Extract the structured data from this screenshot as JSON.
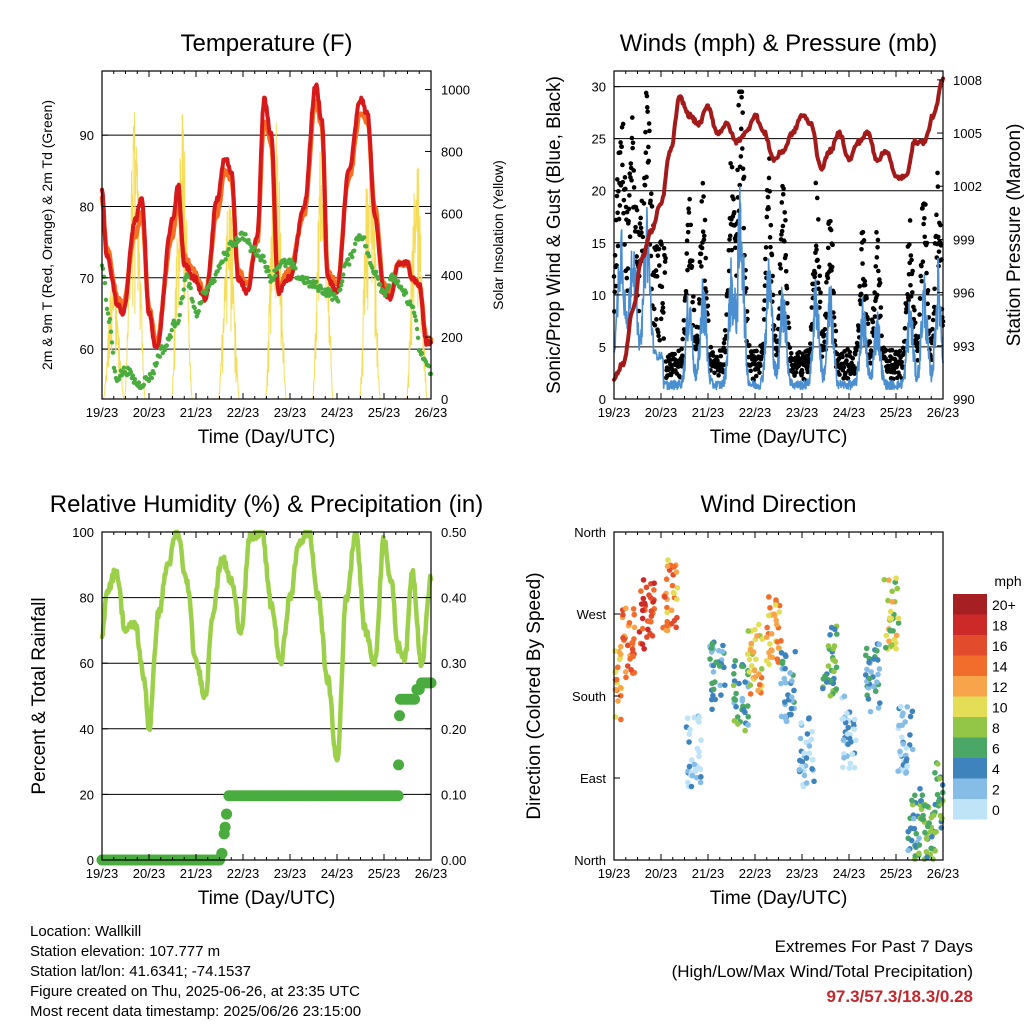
{
  "x_ticks": [
    "19/23",
    "20/23",
    "21/23",
    "22/23",
    "23/23",
    "24/23",
    "25/23",
    "26/23"
  ],
  "colors": {
    "temp_2m": "#d7191c",
    "temp_9m": "#f36f21",
    "dewpoint": "#4aac3f",
    "solar": "#f5dd5a",
    "wind": "#4b8fd0",
    "gust": "#000000",
    "pressure": "#a31a1a",
    "rh": "#9cd04a",
    "precip": "#4aac3f",
    "extremes": "#c0282d"
  },
  "info": {
    "location": "Location: Wallkill",
    "elevation": "Station elevation: 107.777 m",
    "latlon": "Station lat/lon: 41.6341; -74.1537",
    "created": "Figure created on Thu, 2025-06-26, at 23:35 UTC",
    "recent": "Most recent data timestamp: 2025/06/26 23:15:00"
  },
  "extremes": {
    "title": "Extremes For Past 7 Days",
    "subtitle": "(High/Low/Max Wind/Total Precipitation)",
    "values": "97.3/57.3/18.3/0.28"
  },
  "chart_data": [
    {
      "type": "line",
      "title": "Temperature (F)",
      "xlabel": "Time (Day/UTC)",
      "ylabel": "2m & 9m T (Red, Orange) & 2m Td (Green)",
      "y2label": "Solar Insolation (Yellow)",
      "ylim": [
        53,
        99
      ],
      "y2lim": [
        0,
        1060
      ],
      "yticks": [
        60,
        70,
        80,
        90
      ],
      "y2ticks": [
        0,
        200,
        400,
        600,
        800,
        1000
      ],
      "grid": true,
      "x_days": [
        0,
        1,
        2,
        3,
        4,
        5,
        6,
        7
      ],
      "series": [
        {
          "key": "temp_2m",
          "x": [
            0,
            0.1,
            0.35,
            0.45,
            0.7,
            0.85,
            1.0,
            1.15,
            1.5,
            1.62,
            1.75,
            1.95,
            2.2,
            2.45,
            2.62,
            2.75,
            2.9,
            3.1,
            3.3,
            3.45,
            3.6,
            3.75,
            4.0,
            4.3,
            4.55,
            4.68,
            4.8,
            5.0,
            5.25,
            5.5,
            5.65,
            5.8,
            6.0,
            6.15,
            6.3,
            6.5,
            6.6,
            6.75,
            6.9,
            7.0
          ],
          "y": [
            82,
            73,
            66,
            65,
            78,
            81,
            65,
            60,
            78,
            83,
            72,
            70,
            67,
            81,
            87,
            85,
            70,
            68,
            76,
            95,
            90,
            68,
            70,
            80,
            97,
            92,
            70,
            68,
            85,
            95,
            93,
            79,
            68,
            67,
            72,
            72,
            70,
            69,
            61,
            61
          ]
        },
        {
          "key": "temp_9m",
          "x": [
            0,
            0.1,
            0.35,
            0.45,
            0.7,
            0.85,
            1.0,
            1.15,
            1.5,
            1.62,
            1.75,
            1.95,
            2.2,
            2.45,
            2.62,
            2.75,
            2.9,
            3.1,
            3.3,
            3.45,
            3.6,
            3.75,
            4.0,
            4.3,
            4.55,
            4.68,
            4.8,
            5.0,
            5.25,
            5.5,
            5.65,
            5.8,
            6.0,
            6.15,
            6.3,
            6.5,
            6.6,
            6.75,
            6.9,
            7.0
          ],
          "y": [
            81,
            74,
            67,
            66,
            76,
            79,
            66,
            61,
            76,
            81,
            73,
            71,
            68,
            79,
            85,
            84,
            71,
            69,
            75,
            92,
            89,
            69,
            71,
            79,
            95,
            91,
            71,
            69,
            84,
            93,
            92,
            80,
            69,
            68,
            72,
            72,
            70,
            69,
            62,
            61
          ]
        },
        {
          "key": "dewpoint",
          "x": [
            0,
            0.15,
            0.3,
            0.5,
            0.8,
            1.0,
            1.3,
            1.6,
            1.8,
            2.0,
            2.2,
            2.4,
            2.6,
            2.8,
            3.0,
            3.2,
            3.4,
            3.6,
            3.8,
            4.0,
            4.2,
            4.5,
            4.8,
            5.0,
            5.2,
            5.5,
            5.8,
            6.0,
            6.2,
            6.4,
            6.6,
            6.8,
            7.0
          ],
          "y": [
            72,
            64,
            56,
            57,
            55,
            56,
            60,
            64,
            70,
            65,
            68,
            70,
            73,
            75,
            76,
            74,
            73,
            70,
            72,
            72,
            70,
            69,
            68,
            67,
            72,
            76,
            71,
            68,
            70,
            68,
            66,
            59,
            57
          ]
        },
        {
          "key": "solar",
          "days": [
            0.25,
            0.7,
            1.7,
            2.7,
            3.7,
            4.7,
            5.7,
            6.7
          ],
          "peaks": [
            440,
            990,
            950,
            700,
            960,
            940,
            940,
            780
          ]
        }
      ]
    },
    {
      "type": "scatter",
      "title": "Winds (mph) & Pressure (mb)",
      "xlabel": "Time (Day/UTC)",
      "ylabel": "Sonic/Prop Wind & Gust (Blue, Black)",
      "y2label": "Station Pressure (Maroon)",
      "ylim": [
        0,
        31.5
      ],
      "y2lim": [
        990,
        1008.5
      ],
      "yticks": [
        0,
        5,
        10,
        15,
        20,
        25,
        30
      ],
      "y2ticks": [
        990,
        993,
        996,
        999,
        1002,
        1005,
        1008
      ],
      "grid": true,
      "series": [
        {
          "key": "pressure",
          "x": [
            0,
            0.2,
            0.4,
            0.6,
            0.8,
            1.0,
            1.2,
            1.4,
            1.6,
            1.8,
            2.0,
            2.2,
            2.4,
            2.6,
            2.8,
            3.0,
            3.2,
            3.4,
            3.6,
            3.8,
            4.0,
            4.2,
            4.4,
            4.6,
            4.8,
            5.0,
            5.2,
            5.4,
            5.6,
            5.8,
            6.0,
            6.2,
            6.4,
            6.6,
            6.8,
            7.0
          ],
          "y": [
            991.2,
            992,
            995,
            998,
            999.5,
            1001,
            1004,
            1007,
            1006,
            1005.5,
            1006.5,
            1005,
            1005.5,
            1004.5,
            1005,
            1006,
            1005,
            1003.5,
            1004,
            1005,
            1006,
            1005.5,
            1003,
            1004,
            1005,
            1003.5,
            1004.5,
            1005,
            1003.5,
            1004,
            1002.5,
            1002.5,
            1004.5,
            1004.5,
            1006,
            1008
          ]
        },
        {
          "key": "wind",
          "days_peak": [
            0.15,
            0.4,
            0.7,
            1.6,
            1.9,
            2.5,
            2.7,
            3.3,
            3.6,
            4.3,
            4.6,
            5.3,
            5.6,
            6.3,
            6.6,
            6.9
          ],
          "values_peak": [
            14,
            13,
            15,
            8,
            9,
            10,
            17,
            11,
            9,
            9,
            8,
            7,
            6,
            7,
            9,
            10
          ]
        },
        {
          "key": "gust",
          "max": 29.5
        }
      ]
    },
    {
      "type": "line",
      "title": "Relative Humidity (%) & Precipitation (in)",
      "xlabel": "Time (Day/UTC)",
      "ylabel": "Percent & Total Rainfall",
      "ylim": [
        0,
        100
      ],
      "y2lim": [
        0,
        0.5
      ],
      "yticks": [
        0,
        20,
        40,
        60,
        80,
        100
      ],
      "y2ticks": [
        0.0,
        0.1,
        0.2,
        0.3,
        0.4,
        0.5
      ],
      "y2ticklabels": [
        "0.00",
        "0.10",
        "0.20",
        "0.30",
        "0.40",
        "0.50"
      ],
      "grid": true,
      "series": [
        {
          "key": "rh",
          "x": [
            0,
            0.1,
            0.3,
            0.5,
            0.7,
            0.9,
            1.0,
            1.2,
            1.4,
            1.6,
            1.8,
            2.0,
            2.2,
            2.35,
            2.55,
            2.75,
            2.95,
            3.15,
            3.4,
            3.6,
            3.8,
            4.0,
            4.2,
            4.4,
            4.6,
            4.8,
            5.0,
            5.2,
            5.4,
            5.6,
            5.8,
            6.0,
            6.15,
            6.3,
            6.45,
            6.6,
            6.8,
            7.0
          ],
          "y": [
            68,
            82,
            88,
            70,
            72,
            55,
            40,
            75,
            90,
            100,
            85,
            60,
            50,
            75,
            92,
            85,
            70,
            98,
            100,
            78,
            60,
            80,
            97,
            100,
            80,
            55,
            30,
            80,
            100,
            70,
            60,
            98,
            85,
            65,
            62,
            88,
            60,
            86
          ]
        },
        {
          "key": "precip",
          "x": [
            0,
            2.5,
            2.55,
            2.6,
            2.65,
            2.7,
            6.3,
            6.31,
            6.33,
            6.35,
            6.4,
            6.5,
            6.7,
            6.8,
            7.0
          ],
          "y": [
            0,
            0,
            0.01,
            0.04,
            0.07,
            0.098,
            0.098,
            0.145,
            0.22,
            0.245,
            0.245,
            0.245,
            0.26,
            0.27,
            0.27
          ]
        }
      ]
    },
    {
      "type": "scatter",
      "title": "Wind Direction",
      "xlabel": "Time (Day/UTC)",
      "ylabel": "Direction (Colored By Speed)",
      "yticklabels": [
        "North",
        "East",
        "South",
        "West",
        "North"
      ],
      "yticks": [
        0,
        90,
        180,
        270,
        360
      ],
      "ylim": [
        0,
        360
      ],
      "legend": {
        "title": "mph",
        "labels": [
          "20+",
          "18",
          "16",
          "14",
          "12",
          "10",
          "8",
          "6",
          "4",
          "2",
          "0"
        ],
        "colors": [
          "#a51f23",
          "#cc2a29",
          "#e24b2b",
          "#f26c2b",
          "#f7a44a",
          "#e3de56",
          "#93c647",
          "#4ba765",
          "#3f83bd",
          "#86bde6",
          "#bfe3f7"
        ]
      },
      "clusters": [
        {
          "day": 0.0,
          "dir": 190,
          "speed": 12
        },
        {
          "day": 0.3,
          "dir": 240,
          "speed": 14
        },
        {
          "day": 0.7,
          "dir": 270,
          "speed": 16
        },
        {
          "day": 1.2,
          "dir": 290,
          "speed": 13
        },
        {
          "day": 1.7,
          "dir": 120,
          "speed": 1
        },
        {
          "day": 2.2,
          "dir": 200,
          "speed": 4
        },
        {
          "day": 2.7,
          "dir": 180,
          "speed": 5
        },
        {
          "day": 3.0,
          "dir": 220,
          "speed": 11
        },
        {
          "day": 3.4,
          "dir": 250,
          "speed": 12
        },
        {
          "day": 3.7,
          "dir": 190,
          "speed": 4
        },
        {
          "day": 4.1,
          "dir": 120,
          "speed": 2
        },
        {
          "day": 4.6,
          "dir": 220,
          "speed": 6
        },
        {
          "day": 5.0,
          "dir": 140,
          "speed": 2
        },
        {
          "day": 5.5,
          "dir": 200,
          "speed": 4
        },
        {
          "day": 5.9,
          "dir": 270,
          "speed": 9
        },
        {
          "day": 6.2,
          "dir": 130,
          "speed": 2
        },
        {
          "day": 6.4,
          "dir": 40,
          "speed": 5
        },
        {
          "day": 6.7,
          "dir": 35,
          "speed": 6
        },
        {
          "day": 6.95,
          "dir": 70,
          "speed": 6
        }
      ]
    }
  ]
}
